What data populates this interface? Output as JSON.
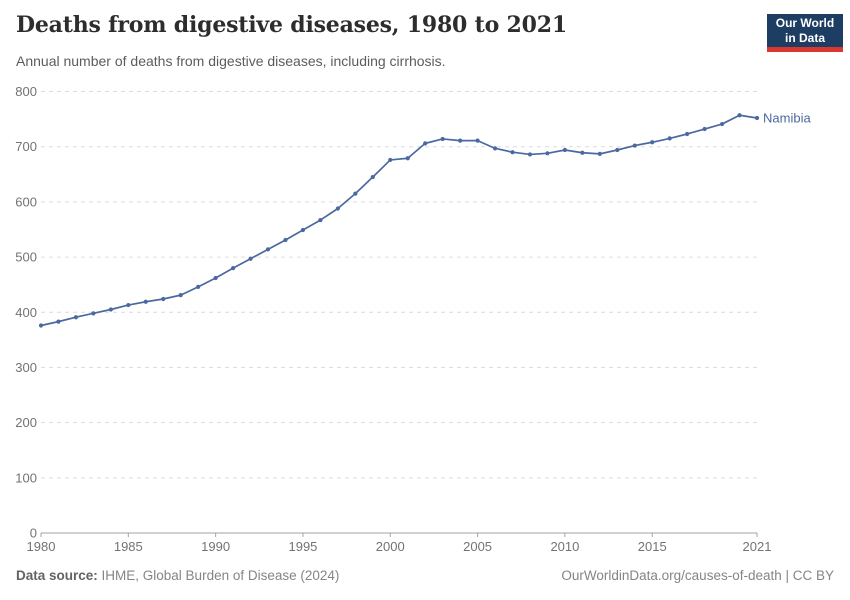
{
  "header": {
    "title": "Deaths from digestive diseases, 1980 to 2021",
    "subtitle": "Annual number of deaths from digestive diseases, including cirrhosis.",
    "logo": {
      "line1": "Our World",
      "line2": "in Data"
    }
  },
  "chart_data": {
    "type": "line",
    "title": "Deaths from digestive diseases, 1980 to 2021",
    "subtitle": "Annual number of deaths from digestive diseases, including cirrhosis.",
    "x": [
      1980,
      1981,
      1982,
      1983,
      1984,
      1985,
      1986,
      1987,
      1988,
      1989,
      1990,
      1991,
      1992,
      1993,
      1994,
      1995,
      1996,
      1997,
      1998,
      1999,
      2000,
      2001,
      2002,
      2003,
      2004,
      2005,
      2006,
      2007,
      2008,
      2009,
      2010,
      2011,
      2012,
      2013,
      2014,
      2015,
      2016,
      2017,
      2018,
      2019,
      2020,
      2021
    ],
    "series": [
      {
        "name": "Namibia",
        "color": "#4b69a0",
        "values": [
          376,
          383,
          391,
          398,
          405,
          413,
          419,
          424,
          431,
          446,
          462,
          480,
          497,
          514,
          531,
          549,
          567,
          588,
          615,
          645,
          676,
          679,
          706,
          714,
          711,
          711,
          697,
          690,
          686,
          688,
          694,
          689,
          687,
          694,
          702,
          708,
          715,
          723,
          732,
          741,
          757,
          752
        ]
      }
    ],
    "xlabel": "",
    "ylabel": "",
    "xlim": [
      1980,
      2021
    ],
    "ylim": [
      0,
      800
    ],
    "xticks": [
      1980,
      1985,
      1990,
      1995,
      2000,
      2005,
      2010,
      2015,
      2021
    ],
    "yticks": [
      0,
      100,
      200,
      300,
      400,
      500,
      600,
      700,
      800
    ],
    "grid": "horizontal-dashed",
    "legend": "inline-end-label"
  },
  "footer": {
    "source_label": "Data source:",
    "source_text": " IHME, Global Burden of Disease (2024)",
    "credit": "OurWorldinData.org/causes-of-death | CC BY"
  },
  "colors": {
    "line": "#4b69a0",
    "grid": "#dcdcdc",
    "axis": "#a3a3a3",
    "tick_text": "#737373",
    "title": "#2d2d2d",
    "subtitle": "#5c5c5c",
    "footer": "#858585",
    "footer_label": "#636363",
    "logo_bg": "#1d3d63",
    "logo_bar": "#d9382e"
  }
}
